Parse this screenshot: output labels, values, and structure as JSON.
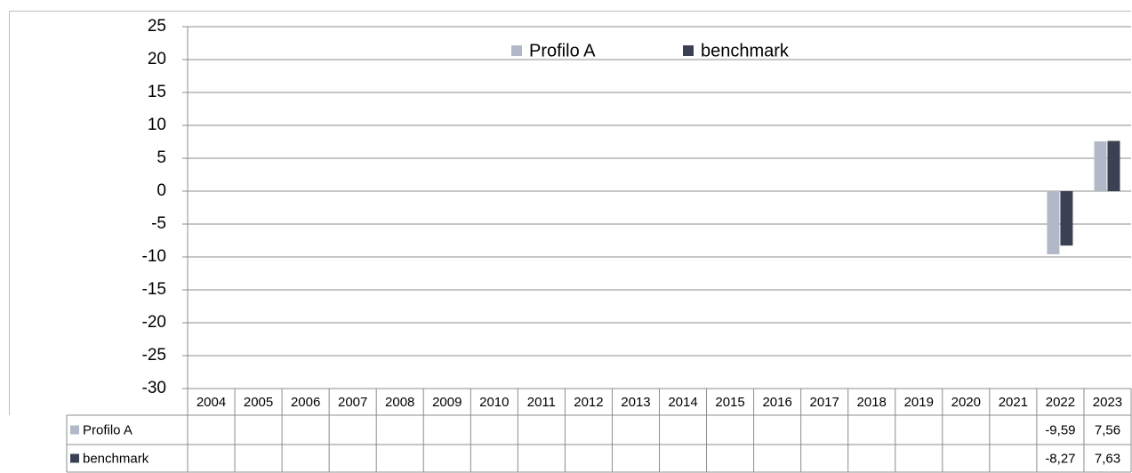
{
  "chart_data": {
    "type": "bar",
    "categories": [
      "2004",
      "2005",
      "2006",
      "2007",
      "2008",
      "2009",
      "2010",
      "2011",
      "2012",
      "2013",
      "2014",
      "2015",
      "2016",
      "2017",
      "2018",
      "2019",
      "2020",
      "2021",
      "2022",
      "2023"
    ],
    "series": [
      {
        "name": "Profilo A",
        "color": "#b1b8c8",
        "values": [
          null,
          null,
          null,
          null,
          null,
          null,
          null,
          null,
          null,
          null,
          null,
          null,
          null,
          null,
          null,
          null,
          null,
          null,
          -9.59,
          7.56
        ],
        "value_labels": [
          null,
          null,
          null,
          null,
          null,
          null,
          null,
          null,
          null,
          null,
          null,
          null,
          null,
          null,
          null,
          null,
          null,
          null,
          "-9,59",
          "7,56"
        ]
      },
      {
        "name": "benchmark",
        "color": "#3a4152",
        "values": [
          null,
          null,
          null,
          null,
          null,
          null,
          null,
          null,
          null,
          null,
          null,
          null,
          null,
          null,
          null,
          null,
          null,
          null,
          -8.27,
          7.63
        ],
        "value_labels": [
          null,
          null,
          null,
          null,
          null,
          null,
          null,
          null,
          null,
          null,
          null,
          null,
          null,
          null,
          null,
          null,
          null,
          null,
          "-8,27",
          "7,63"
        ]
      }
    ],
    "ylim": [
      -30,
      25
    ],
    "yticks": [
      -30,
      -25,
      -20,
      -15,
      -10,
      -5,
      0,
      5,
      10,
      15,
      20,
      25
    ],
    "grid": true,
    "legend": "top",
    "data_table": true
  }
}
